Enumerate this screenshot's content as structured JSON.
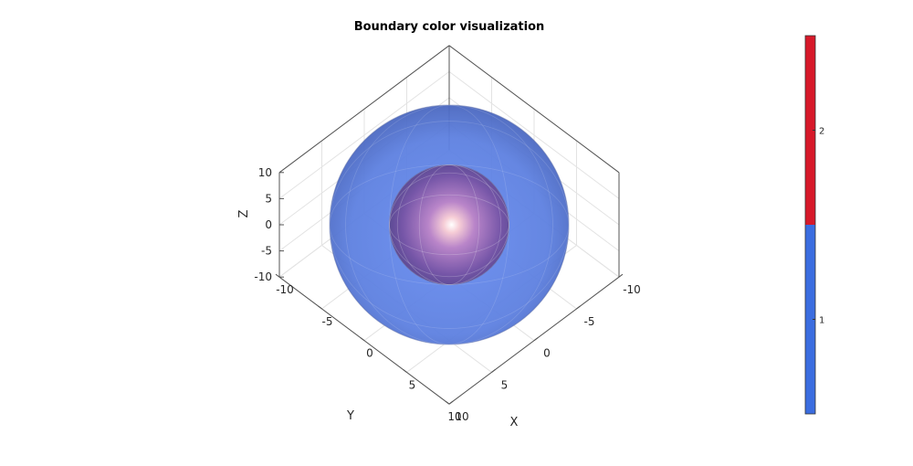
{
  "chart_data": {
    "type": "3d-surface",
    "title": "Boundary color visualization",
    "xlabel": "X",
    "ylabel": "Y",
    "zlabel": "Z",
    "xlim": [
      -10,
      10
    ],
    "ylim": [
      -10,
      10
    ],
    "zlim": [
      -10,
      10
    ],
    "xticks": [
      "-10",
      "-5",
      "0",
      "5",
      "10"
    ],
    "yticks": [
      "-10",
      "-5",
      "0",
      "5",
      "10"
    ],
    "zticks": [
      "-10",
      "-5",
      "0",
      "5",
      "10"
    ],
    "grid": true,
    "surfaces": [
      {
        "shape": "sphere",
        "boundary": 1,
        "radius": 10,
        "color": "#3f6fe0",
        "opacity": 0.7
      },
      {
        "shape": "sphere",
        "boundary": 2,
        "radius": 5,
        "color": "#d7192a",
        "opacity": 0.7
      }
    ],
    "colorbar": {
      "ticks": [
        "1",
        "2"
      ],
      "colors": [
        "#3b6de0",
        "#d7192a"
      ],
      "placement": "right"
    }
  }
}
